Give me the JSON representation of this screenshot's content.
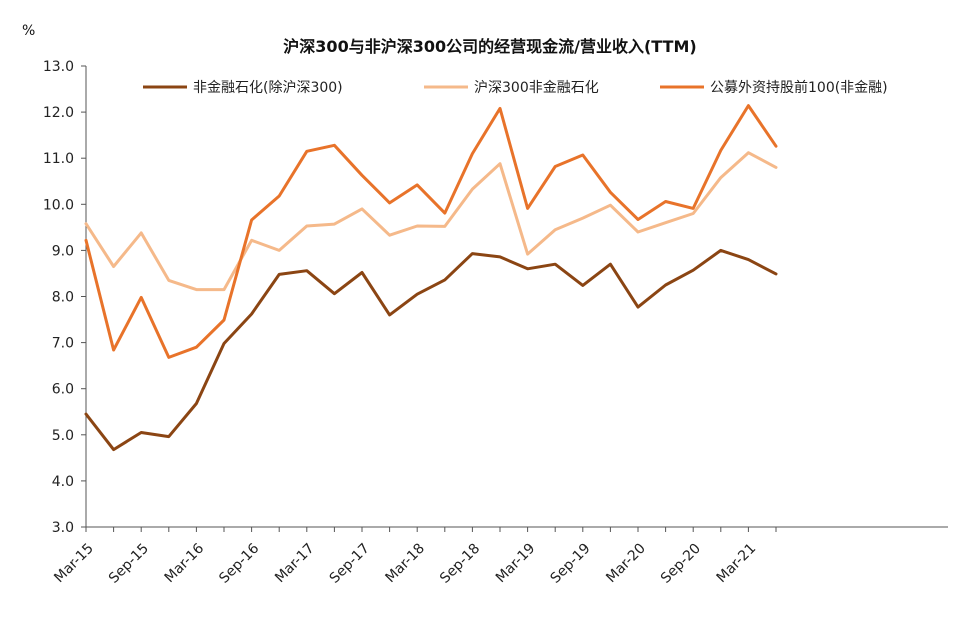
{
  "chart_data": {
    "type": "line",
    "title": "沪深300与非沪深300公司的经营现金流/营业收入(TTM)",
    "unit": "%",
    "ylim": [
      3.0,
      13.0
    ],
    "yticks": [
      "3.0",
      "4.0",
      "5.0",
      "6.0",
      "7.0",
      "8.0",
      "9.0",
      "10.0",
      "11.0",
      "12.0",
      "13.0"
    ],
    "x_labels": [
      "Mar-15",
      "Sep-15",
      "Mar-16",
      "Sep-16",
      "Mar-17",
      "Sep-17",
      "Mar-18",
      "Sep-18",
      "Mar-19",
      "Sep-19",
      "Mar-20",
      "Sep-20",
      "Mar-21"
    ],
    "x_count": 26,
    "grid": false,
    "legend_position": "top",
    "series": [
      {
        "name": "非金融石化(除沪深300)",
        "color": "#8B4513",
        "values": [
          5.45,
          4.68,
          5.05,
          4.96,
          5.68,
          6.98,
          7.62,
          8.48,
          8.56,
          8.06,
          8.52,
          7.6,
          8.05,
          8.36,
          8.93,
          8.86,
          8.6,
          8.7,
          8.24,
          8.7,
          7.77,
          8.25,
          8.57,
          9.0,
          8.8,
          8.49
        ]
      },
      {
        "name": "沪深300非金融石化",
        "color": "#F5B98A",
        "values": [
          9.58,
          8.65,
          9.38,
          8.35,
          8.15,
          8.15,
          9.22,
          9.0,
          9.53,
          9.57,
          9.9,
          9.33,
          9.53,
          9.52,
          10.33,
          10.88,
          8.92,
          9.45,
          9.7,
          9.98,
          9.4,
          9.6,
          9.8,
          10.58,
          11.12,
          10.8
        ]
      },
      {
        "name": "公募外资持股前100(非金融)",
        "color": "#E8732A",
        "values": [
          9.22,
          6.84,
          7.98,
          6.68,
          6.9,
          7.49,
          9.66,
          10.18,
          11.15,
          11.28,
          10.63,
          10.03,
          10.42,
          9.81,
          11.1,
          12.08,
          9.91,
          10.82,
          11.07,
          10.26,
          9.67,
          10.06,
          9.91,
          11.17,
          12.14,
          11.26
        ]
      }
    ]
  }
}
